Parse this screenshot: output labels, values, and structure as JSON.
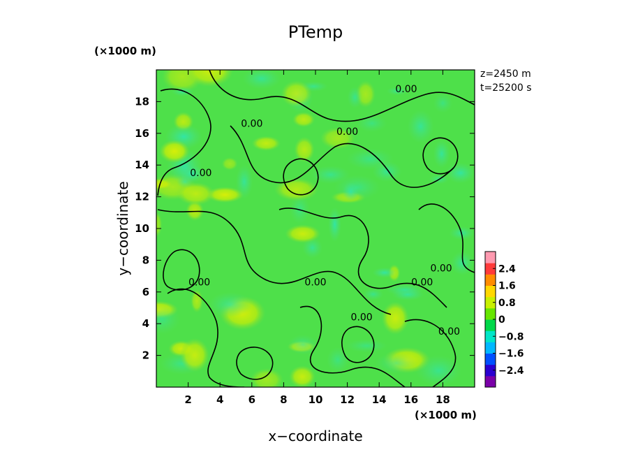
{
  "chart_data": {
    "type": "heatmap",
    "title": "PTemp",
    "xlabel": "x−coordinate",
    "ylabel": "y−coordinate",
    "x_unit": "(×1000 m)",
    "y_unit": "(×1000 m)",
    "xlim": [
      0,
      20
    ],
    "ylim": [
      0,
      20
    ],
    "x_ticks": [
      2,
      4,
      6,
      8,
      10,
      12,
      14,
      16,
      18
    ],
    "y_ticks": [
      2,
      4,
      6,
      8,
      10,
      12,
      14,
      16,
      18
    ],
    "x_tick_labels": [
      "2",
      "4",
      "6",
      "8",
      "10",
      "12",
      "14",
      "16",
      "18"
    ],
    "y_tick_labels": [
      "2",
      "4",
      "6",
      "8",
      "10",
      "12",
      "14",
      "16",
      "18"
    ],
    "annotations": [
      "z=2450 m",
      "t=25200 s"
    ],
    "contour_level": 0.0,
    "contour_labels": [
      {
        "text": "0.00",
        "x": 15.7,
        "y": 18.6
      },
      {
        "text": "0.00",
        "x": 12.0,
        "y": 15.9
      },
      {
        "text": "0.00",
        "x": 6.0,
        "y": 16.4
      },
      {
        "text": "0.00",
        "x": 2.8,
        "y": 13.3
      },
      {
        "text": "0.00",
        "x": 2.7,
        "y": 6.4
      },
      {
        "text": "0.00",
        "x": 10.0,
        "y": 6.4
      },
      {
        "text": "0.00",
        "x": 17.9,
        "y": 7.3
      },
      {
        "text": "0.00",
        "x": 16.7,
        "y": 6.4
      },
      {
        "text": "0.00",
        "x": 12.9,
        "y": 4.2
      },
      {
        "text": "0.00",
        "x": 18.4,
        "y": 3.3
      }
    ],
    "colorbar": {
      "range": [
        -3.2,
        3.2
      ],
      "ticks": [
        2.4,
        1.6,
        0.8,
        0,
        -0.8,
        -1.6,
        -2.4
      ],
      "tick_labels": [
        "2.4",
        "1.6",
        "0.8",
        "0",
        "−0.8",
        "−1.6",
        "−2.4"
      ],
      "colors": [
        "#7a00a8",
        "#2a00d0",
        "#0050ff",
        "#00b8ff",
        "#00e6c8",
        "#00d84a",
        "#66e600",
        "#c8f000",
        "#ffd800",
        "#ff8c00",
        "#ff3a3a",
        "#ff9ab0"
      ]
    },
    "field_summary": {
      "dominant_value": 0.0,
      "min_visible": -0.8,
      "max_visible": 1.2
    }
  }
}
